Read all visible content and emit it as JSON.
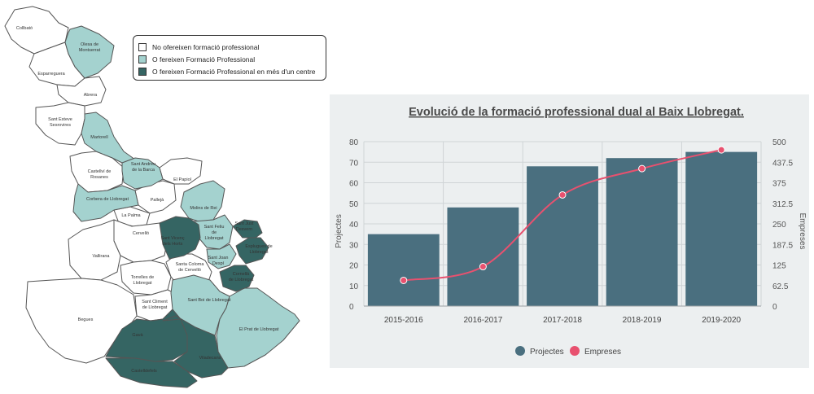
{
  "colors": {
    "none": "#ffffff",
    "one": "#a4d2cf",
    "multi": "#356563",
    "projectes": "#4a6f7f",
    "empreses": "#e8516f",
    "panel_bg": "#eceff0",
    "grid": "#cfd4d6"
  },
  "map": {
    "legend": [
      {
        "label": "No ofereixen formació professional",
        "color": "#ffffff"
      },
      {
        "label": "O fereixen Formació Professional",
        "color": "#a4d2cf"
      },
      {
        "label": "O fereixen Formació Professional en més d'un centre",
        "color": "#356563"
      }
    ],
    "labels": {
      "collbato": "Collbató",
      "olesa": [
        "Olesa de",
        "Montserrat"
      ],
      "esparreguera": "Esparreguera",
      "abrera": "Abrera",
      "sant_esteve": [
        "Sant Esteve",
        "Sesrovires"
      ],
      "martorell": "Martorell",
      "sant_andreu": [
        "Sant Andreu",
        "de la Barca"
      ],
      "castellvi": [
        "Castellví de",
        "Rosanes"
      ],
      "el_papiol": "El Papiol",
      "corbera": "Corbera de Llobregat",
      "pallejà": "Pallejà",
      "molins": "Molins de Rei",
      "la_palma": "La Palma",
      "sant_feliu": [
        "Sant Feliu",
        "de",
        "Llobregat"
      ],
      "sant_just": [
        "Sant Just",
        "Desvern"
      ],
      "cervello": "Cervelló",
      "sant_vicenc": [
        "Sant Vicenç",
        "dels Horts"
      ],
      "esplugues": [
        "Esplugues de",
        "Llobregat"
      ],
      "vallirana": "Vallirana",
      "santa_coloma": [
        "Santa Coloma",
        "de Cervelló"
      ],
      "sant_joan": [
        "Sant Joan",
        "Despí"
      ],
      "cornella": [
        "Cornellà",
        "de Llobregat"
      ],
      "torrelles": [
        "Torrelles de",
        "Llobregat"
      ],
      "sant_climent": [
        "Sant Climent",
        "de Llobregat"
      ],
      "sant_boi": "Sant Boi de Llobregat",
      "begues": "Begues",
      "el_prat": "El Prat de Llobregat",
      "gava": "Gavà",
      "viladecans": "Viladecans",
      "castelldefels": "Castelldefels"
    }
  },
  "chart_data": {
    "type": "bar",
    "title": "Evolució de la formació professional dual al  Baix Llobregat.",
    "categories": [
      "2015-2016",
      "2016-2017",
      "2017-2018",
      "2018-2019",
      "2019-2020"
    ],
    "series": [
      {
        "name": "Projectes",
        "type": "bar",
        "axis": "left",
        "values": [
          35,
          48,
          68,
          72,
          75
        ]
      },
      {
        "name": "Empreses",
        "type": "line",
        "axis": "right",
        "values": [
          78,
          120,
          338,
          418,
          475
        ]
      }
    ],
    "ylabel": "Projectes",
    "y2label": "Empreses",
    "ylim": [
      0,
      80
    ],
    "y2lim": [
      0,
      500
    ],
    "yticks": [
      "0",
      "10",
      "20",
      "30",
      "40",
      "50",
      "60",
      "70",
      "80"
    ],
    "y2ticks": [
      "0",
      "62.5",
      "125",
      "187.5",
      "250",
      "312.5",
      "375",
      "437.5",
      "500"
    ],
    "grid": true,
    "legend_position": "bottom"
  }
}
